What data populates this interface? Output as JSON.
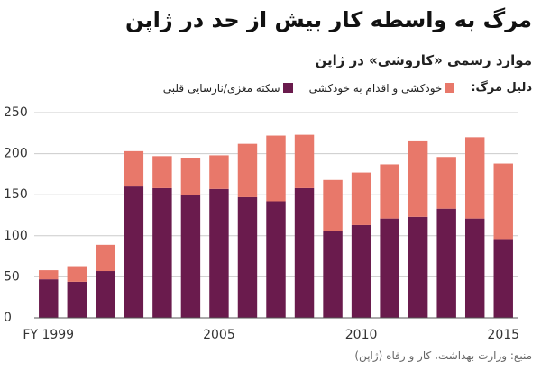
{
  "chart_data": {
    "type": "stacked-bar",
    "title": "مرگ به واسطه کار بیش از حد در ژاپن",
    "subtitle": "موارد رسمی «کاروشی» در ژاپن",
    "legend_title": "دلیل مرگ:",
    "source": "منبع: وزارت بهداشت، کار و رفاه (ژاپن)",
    "categories": [
      "FY 1999",
      null,
      null,
      null,
      null,
      null,
      "2005",
      null,
      null,
      null,
      null,
      "2010",
      null,
      null,
      null,
      null,
      "2015"
    ],
    "series": [
      {
        "name": "سکته مغزی/نارسایی قلبی",
        "color": "#6a1b4d",
        "values": [
          47,
          44,
          57,
          160,
          158,
          150,
          157,
          147,
          142,
          158,
          106,
          113,
          121,
          123,
          133,
          121,
          96
        ]
      },
      {
        "name": "خودکشی و اقدام به خودکشی",
        "color": "#e8786a",
        "values": [
          11,
          19,
          32,
          43,
          39,
          45,
          41,
          65,
          80,
          65,
          62,
          64,
          66,
          92,
          63,
          99,
          92
        ]
      }
    ],
    "ylim": [
      0,
      250
    ],
    "yticks": [
      0,
      50,
      100,
      150,
      200,
      250
    ],
    "grid": true
  }
}
